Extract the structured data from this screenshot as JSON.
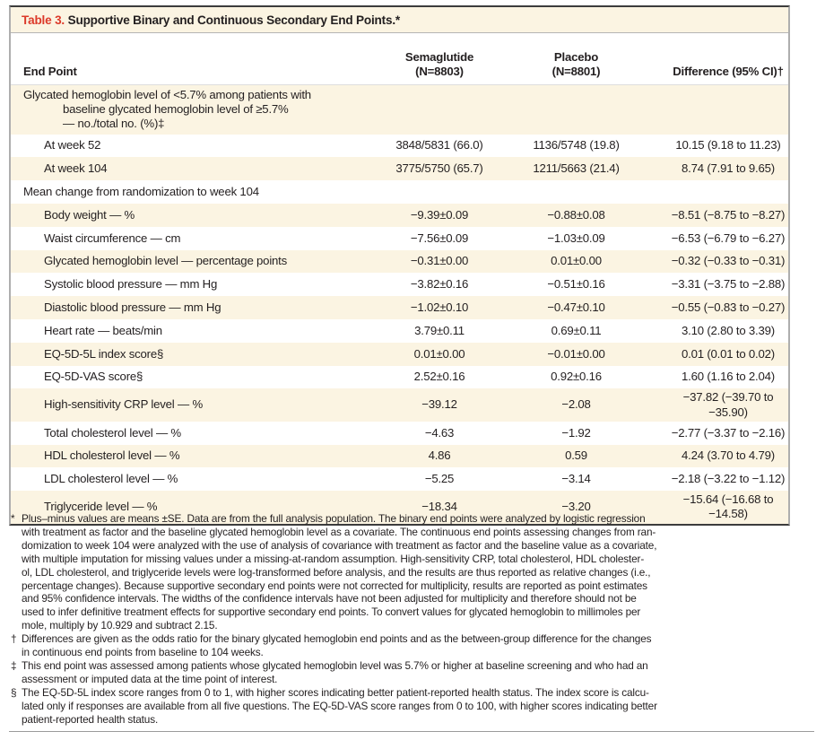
{
  "title": {
    "label": "Table 3.",
    "text": " Supportive Binary and Continuous Secondary End Points.*"
  },
  "columns": {
    "endpoint": "End Point",
    "semaglutide": "Semaglutide\n(N=8803)",
    "placebo": "Placebo\n(N=8801)",
    "difference": "Difference (95% CI)†"
  },
  "rows": [
    {
      "type": "section",
      "label": "Glycated hemoglobin level of <5.7% among patients with\nbaseline glycated hemoglobin level of ≥5.7%\n— no./total no. (%)‡",
      "semaglutide": "",
      "placebo": "",
      "difference": ""
    },
    {
      "type": "sub",
      "label": "At week 52",
      "semaglutide": "3848/5831 (66.0)",
      "placebo": "1136/5748 (19.8)",
      "difference": "10.15 (9.18 to 11.23)"
    },
    {
      "type": "sub",
      "label": "At week 104",
      "semaglutide": "3775/5750 (65.7)",
      "placebo": "1211/5663 (21.4)",
      "difference": "8.74 (7.91 to 9.65)"
    },
    {
      "type": "section",
      "label": "Mean change from randomization to week 104",
      "semaglutide": "",
      "placebo": "",
      "difference": ""
    },
    {
      "type": "sub",
      "label": "Body weight — %",
      "semaglutide": "−9.39±0.09",
      "placebo": "−0.88±0.08",
      "difference": "−8.51 (−8.75 to −8.27)"
    },
    {
      "type": "sub",
      "label": "Waist circumference — cm",
      "semaglutide": "−7.56±0.09",
      "placebo": "−1.03±0.09",
      "difference": "−6.53 (−6.79 to −6.27)"
    },
    {
      "type": "sub",
      "label": "Glycated hemoglobin level — percentage points",
      "semaglutide": "−0.31±0.00",
      "placebo": "0.01±0.00",
      "difference": "−0.32 (−0.33 to −0.31)"
    },
    {
      "type": "sub",
      "label": "Systolic blood pressure — mm Hg",
      "semaglutide": "−3.82±0.16",
      "placebo": "−0.51±0.16",
      "difference": "−3.31 (−3.75 to −2.88)"
    },
    {
      "type": "sub",
      "label": "Diastolic blood pressure — mm Hg",
      "semaglutide": "−1.02±0.10",
      "placebo": "−0.47±0.10",
      "difference": "−0.55 (−0.83 to −0.27)"
    },
    {
      "type": "sub",
      "label": "Heart rate — beats/min",
      "semaglutide": "3.79±0.11",
      "placebo": "0.69±0.11",
      "difference": "3.10 (2.80 to 3.39)"
    },
    {
      "type": "sub",
      "label": "EQ-5D-5L index score§",
      "semaglutide": "0.01±0.00",
      "placebo": "−0.01±0.00",
      "difference": "0.01 (0.01 to 0.02)"
    },
    {
      "type": "sub",
      "label": "EQ-5D-VAS score§",
      "semaglutide": "2.52±0.16",
      "placebo": "0.92±0.16",
      "difference": "1.60 (1.16 to 2.04)"
    },
    {
      "type": "sub",
      "label": "High-sensitivity CRP level — %",
      "semaglutide": "−39.12",
      "placebo": "−2.08",
      "difference": "−37.82 (−39.70 to −35.90)"
    },
    {
      "type": "sub",
      "label": "Total cholesterol level — %",
      "semaglutide": "−4.63",
      "placebo": "−1.92",
      "difference": "−2.77 (−3.37 to −2.16)"
    },
    {
      "type": "sub",
      "label": "HDL cholesterol level — %",
      "semaglutide": "4.86",
      "placebo": "0.59",
      "difference": "4.24 (3.70 to 4.79)"
    },
    {
      "type": "sub",
      "label": "LDL cholesterol level — %",
      "semaglutide": "−5.25",
      "placebo": "−3.14",
      "difference": "−2.18 (−3.22 to −1.12)"
    },
    {
      "type": "sub",
      "label": "Triglyceride level — %",
      "semaglutide": "−18.34",
      "placebo": "−3.20",
      "difference": "−15.64 (−16.68 to −14.58)"
    }
  ],
  "footnotes": [
    {
      "marker": "*",
      "text": "Plus–minus values are means ±SE. Data are from the full analysis population. The binary end points were analyzed by logistic regression\nwith treatment as factor and the baseline glycated hemoglobin level as a covariate. The continuous end points assessing changes from ran-\ndomization to week 104 were analyzed with the use of analysis of covariance with treatment as factor and the baseline value as a covariate,\nwith multiple imputation for missing values under a missing-at-random assumption. High-sensitivity CRP, total cholesterol, HDL cholester-\nol, LDL cholesterol, and triglyceride levels were log-transformed before analysis, and the results are thus reported as relative changes (i.e.,\npercentage changes). Because supportive secondary end points were not corrected for multiplicity, results are reported as point estimates\nand 95% confidence intervals. The widths of the confidence intervals have not been adjusted for multiplicity and therefore should not be\nused to infer definitive treatment effects for supportive secondary end points. To convert values for glycated hemoglobin to millimoles per\nmole, multiply by 10.929 and subtract 2.15."
    },
    {
      "marker": "†",
      "text": "Differences are given as the odds ratio for the binary glycated hemoglobin end points and as the between-group difference for the changes\nin continuous end points from baseline to 104 weeks."
    },
    {
      "marker": "‡",
      "text": "This end point was assessed among patients whose glycated hemoglobin level was 5.7% or higher at baseline screening and who had an\nassessment or imputed data at the time point of interest."
    },
    {
      "marker": "§",
      "text": "The EQ-5D-5L index score ranges from 0 to 1, with higher scores indicating better patient-reported health status. The index score is calcu-\nlated only if responses are available from all five questions. The EQ-5D-VAS score ranges from 0 to 100, with higher scores indicating better\npatient-reported health status."
    }
  ],
  "colors": {
    "accent_red": "#dc3a2a",
    "row_cream": "#fbf4e2",
    "text": "#231f20"
  }
}
